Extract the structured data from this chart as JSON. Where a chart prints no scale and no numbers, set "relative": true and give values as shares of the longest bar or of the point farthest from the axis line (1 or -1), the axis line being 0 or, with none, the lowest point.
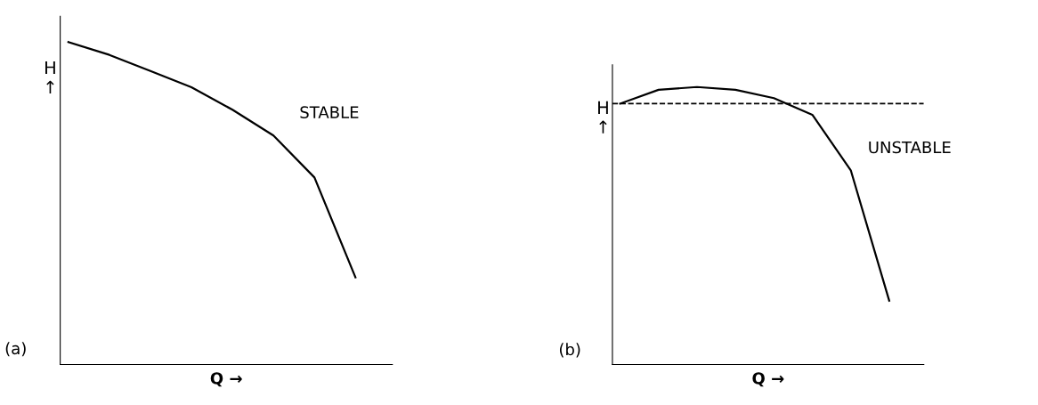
{
  "chart_data": [
    {
      "type": "line",
      "relative": true,
      "xlabel": "Q →",
      "ylabel": "H\n↑",
      "categories": [
        null,
        null,
        null,
        null,
        null,
        null,
        null,
        null
      ],
      "annotations": [
        "(a)",
        "STABLE"
      ],
      "series": [
        {
          "color": "#000000",
          "values": [
            1,
            0.96,
            0.91,
            0.86,
            0.79,
            0.71,
            0.58,
            0.27
          ]
        }
      ]
    },
    {
      "type": "line",
      "relative": true,
      "xlabel": "Q →",
      "ylabel": "H\n↑",
      "categories": [
        null,
        null,
        null,
        null,
        null,
        null,
        null,
        null
      ],
      "annotations": [
        "(b)",
        "UNSTABLE"
      ],
      "ref_lines": [
        {
          "axis": "y",
          "value": 0.94,
          "color": "#000000",
          "line_style": "dashed"
        }
      ],
      "series": [
        {
          "color": "#000000",
          "values": [
            0.94,
            0.99,
            1,
            0.99,
            0.96,
            0.9,
            0.7,
            0.23
          ]
        }
      ]
    }
  ]
}
